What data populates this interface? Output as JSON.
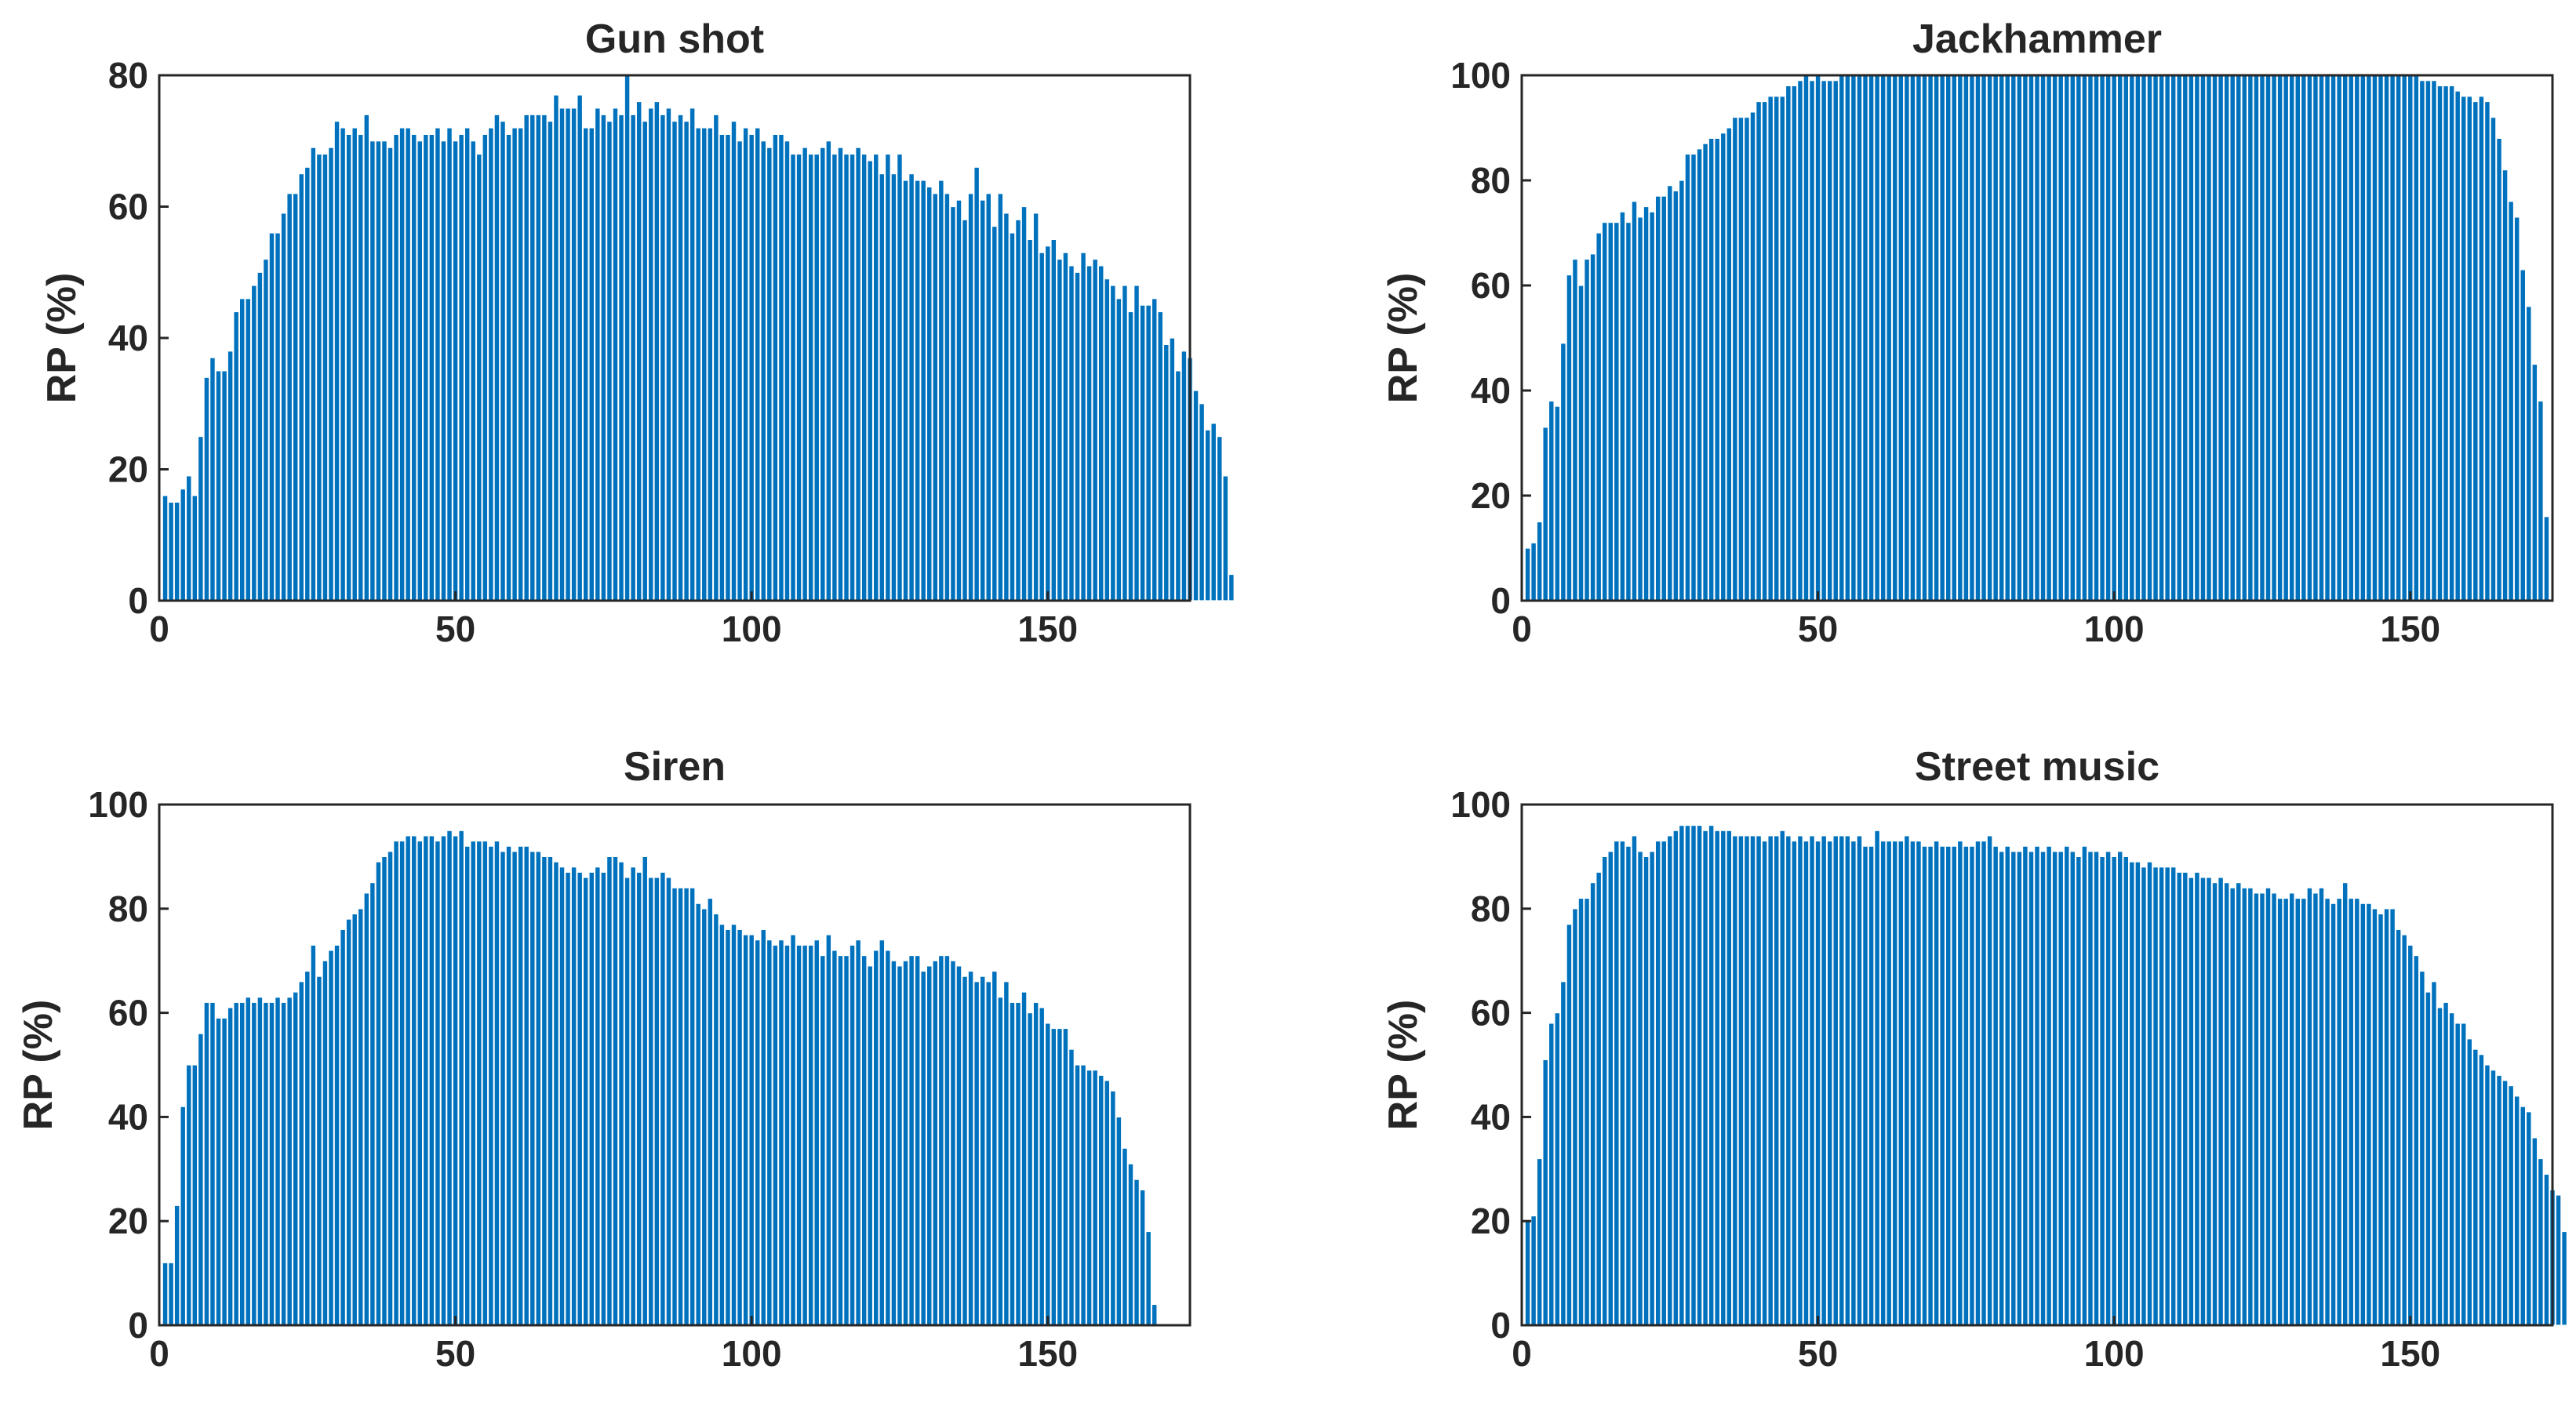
{
  "colors": {
    "bar": "#0072BD",
    "axis": "#262626",
    "background": "#ffffff"
  },
  "chart_data": [
    {
      "type": "bar",
      "title": "Gun shot",
      "ylabel": "RP (%)",
      "xlabel": "",
      "xlim": [
        0,
        174
      ],
      "ylim": [
        0,
        80
      ],
      "xticks": [
        "0",
        "50",
        "100",
        "150"
      ],
      "yticks": [
        "0",
        "20",
        "40",
        "60",
        "80"
      ],
      "grid": false,
      "x_start": 1,
      "values": [
        16,
        15,
        15,
        17,
        19,
        16,
        25,
        34,
        37,
        35,
        35,
        38,
        44,
        46,
        46,
        48,
        50,
        52,
        56,
        56,
        59,
        62,
        62,
        65,
        66,
        69,
        68,
        68,
        69,
        73,
        72,
        71,
        72,
        71,
        74,
        70,
        70,
        70,
        69,
        71,
        72,
        72,
        71,
        70,
        71,
        71,
        72,
        70,
        72,
        70,
        71,
        72,
        70,
        68,
        71,
        72,
        74,
        73,
        71,
        72,
        72,
        74,
        74,
        74,
        74,
        73,
        77,
        75,
        75,
        75,
        77,
        72,
        72,
        75,
        74,
        73,
        75,
        74,
        80,
        74,
        76,
        73,
        75,
        76,
        74,
        75,
        73,
        74,
        73,
        75,
        72,
        72,
        72,
        74,
        71,
        71,
        73,
        70,
        72,
        71,
        72,
        70,
        69,
        71,
        71,
        70,
        68,
        68,
        69,
        68,
        68,
        69,
        70,
        68,
        69,
        68,
        68,
        69,
        68,
        67,
        68,
        65,
        68,
        65,
        68,
        64,
        65,
        64,
        64,
        63,
        62,
        64,
        62,
        60,
        61,
        58,
        62,
        66,
        61,
        62,
        57,
        62,
        59,
        56,
        58,
        60,
        55,
        59,
        53,
        54,
        55,
        52,
        53,
        51,
        50,
        53,
        51,
        52,
        51,
        49,
        48,
        46,
        48,
        44,
        48,
        45,
        45,
        46,
        44,
        39,
        40,
        35,
        38,
        37,
        32,
        30,
        26,
        27,
        25,
        19,
        4
      ]
    },
    {
      "type": "bar",
      "title": "Jackhammer",
      "ylabel": "RP (%)",
      "xlabel": "",
      "xlim": [
        0,
        174
      ],
      "ylim": [
        0,
        100
      ],
      "xticks": [
        "0",
        "50",
        "100",
        "150"
      ],
      "yticks": [
        "0",
        "20",
        "40",
        "60",
        "80",
        "100"
      ],
      "grid": false,
      "x_start": 1,
      "values": [
        10,
        11,
        15,
        33,
        38,
        37,
        49,
        62,
        65,
        60,
        65,
        66,
        70,
        72,
        72,
        72,
        74,
        72,
        76,
        73,
        75,
        74,
        77,
        77,
        79,
        78,
        80,
        85,
        85,
        86,
        87,
        88,
        88,
        89,
        90,
        92,
        92,
        92,
        93,
        95,
        95,
        96,
        96,
        96,
        98,
        98,
        99,
        100,
        99,
        100,
        99,
        99,
        99,
        100,
        100,
        100,
        100,
        100,
        100,
        100,
        100,
        100,
        100,
        100,
        100,
        100,
        100,
        100,
        100,
        100,
        100,
        100,
        100,
        100,
        100,
        100,
        100,
        100,
        100,
        100,
        100,
        100,
        100,
        100,
        100,
        100,
        100,
        100,
        100,
        100,
        100,
        100,
        100,
        100,
        100,
        100,
        100,
        100,
        100,
        100,
        100,
        100,
        100,
        100,
        100,
        100,
        100,
        100,
        100,
        100,
        100,
        100,
        100,
        100,
        100,
        100,
        100,
        100,
        100,
        100,
        100,
        100,
        100,
        100,
        100,
        100,
        100,
        100,
        100,
        100,
        100,
        100,
        100,
        100,
        100,
        100,
        100,
        100,
        100,
        100,
        100,
        100,
        100,
        100,
        100,
        100,
        100,
        100,
        100,
        100,
        100,
        99,
        99,
        99,
        98,
        98,
        98,
        97,
        96,
        96,
        95,
        96,
        95,
        92,
        88,
        82,
        76,
        73,
        63,
        56,
        45,
        38,
        16
      ]
    },
    {
      "type": "bar",
      "title": "Siren",
      "ylabel": "RP (%)",
      "xlabel": "",
      "xlim": [
        0,
        174
      ],
      "ylim": [
        0,
        100
      ],
      "xticks": [
        "0",
        "50",
        "100",
        "150"
      ],
      "yticks": [
        "0",
        "20",
        "40",
        "60",
        "80",
        "100"
      ],
      "grid": false,
      "x_start": 1,
      "values": [
        12,
        12,
        23,
        42,
        50,
        50,
        56,
        62,
        62,
        59,
        59,
        61,
        62,
        62,
        63,
        62,
        63,
        62,
        62,
        63,
        62,
        63,
        64,
        66,
        68,
        73,
        67,
        70,
        72,
        73,
        76,
        78,
        79,
        80,
        83,
        85,
        89,
        90,
        91,
        93,
        93,
        94,
        94,
        93,
        94,
        94,
        93,
        94,
        95,
        94,
        95,
        92,
        93,
        93,
        93,
        92,
        93,
        91,
        92,
        91,
        92,
        92,
        91,
        91,
        90,
        90,
        89,
        88,
        87,
        88,
        87,
        86,
        87,
        88,
        87,
        90,
        90,
        89,
        86,
        88,
        87,
        90,
        86,
        86,
        87,
        86,
        84,
        84,
        84,
        84,
        81,
        80,
        82,
        79,
        77,
        76,
        77,
        76,
        75,
        75,
        74,
        76,
        74,
        73,
        74,
        73,
        75,
        73,
        73,
        73,
        74,
        71,
        75,
        72,
        71,
        71,
        73,
        74,
        71,
        69,
        72,
        74,
        72,
        70,
        69,
        70,
        71,
        71,
        68,
        69,
        70,
        71,
        71,
        70,
        69,
        67,
        68,
        66,
        67,
        66,
        68,
        63,
        66,
        62,
        62,
        64,
        60,
        62,
        61,
        58,
        57,
        57,
        57,
        53,
        50,
        50,
        49,
        49,
        48,
        47,
        45,
        40,
        34,
        31,
        28,
        26,
        18,
        4
      ]
    },
    {
      "type": "bar",
      "title": "Street music",
      "ylabel": "RP (%)",
      "xlabel": "",
      "xlim": [
        0,
        174
      ],
      "ylim": [
        0,
        100
      ],
      "xticks": [
        "0",
        "50",
        "100",
        "150"
      ],
      "yticks": [
        "0",
        "20",
        "40",
        "60",
        "80",
        "100"
      ],
      "grid": false,
      "x_start": 1,
      "values": [
        20,
        21,
        32,
        51,
        58,
        60,
        66,
        77,
        80,
        82,
        82,
        85,
        87,
        90,
        91,
        93,
        93,
        92,
        94,
        91,
        90,
        91,
        93,
        93,
        94,
        95,
        96,
        96,
        96,
        96,
        95,
        96,
        95,
        95,
        95,
        94,
        94,
        94,
        94,
        94,
        93,
        94,
        94,
        95,
        94,
        93,
        94,
        93,
        94,
        93,
        94,
        93,
        94,
        94,
        94,
        93,
        94,
        92,
        92,
        95,
        93,
        93,
        93,
        93,
        94,
        93,
        93,
        92,
        92,
        93,
        92,
        92,
        92,
        93,
        92,
        92,
        93,
        93,
        94,
        92,
        91,
        92,
        91,
        91,
        92,
        91,
        92,
        91,
        92,
        91,
        91,
        92,
        91,
        90,
        92,
        91,
        91,
        90,
        91,
        90,
        91,
        90,
        89,
        89,
        88,
        89,
        88,
        88,
        88,
        88,
        87,
        87,
        86,
        87,
        86,
        86,
        85,
        86,
        85,
        84,
        85,
        84,
        84,
        83,
        83,
        84,
        83,
        82,
        82,
        83,
        82,
        82,
        84,
        83,
        84,
        82,
        81,
        82,
        85,
        82,
        82,
        81,
        81,
        80,
        79,
        80,
        80,
        76,
        75,
        73,
        71,
        68,
        64,
        66,
        61,
        62,
        60,
        58,
        58,
        55,
        53,
        52,
        50,
        49,
        48,
        47,
        46,
        44,
        42,
        41,
        36,
        32,
        29,
        26,
        25,
        18
      ]
    }
  ]
}
